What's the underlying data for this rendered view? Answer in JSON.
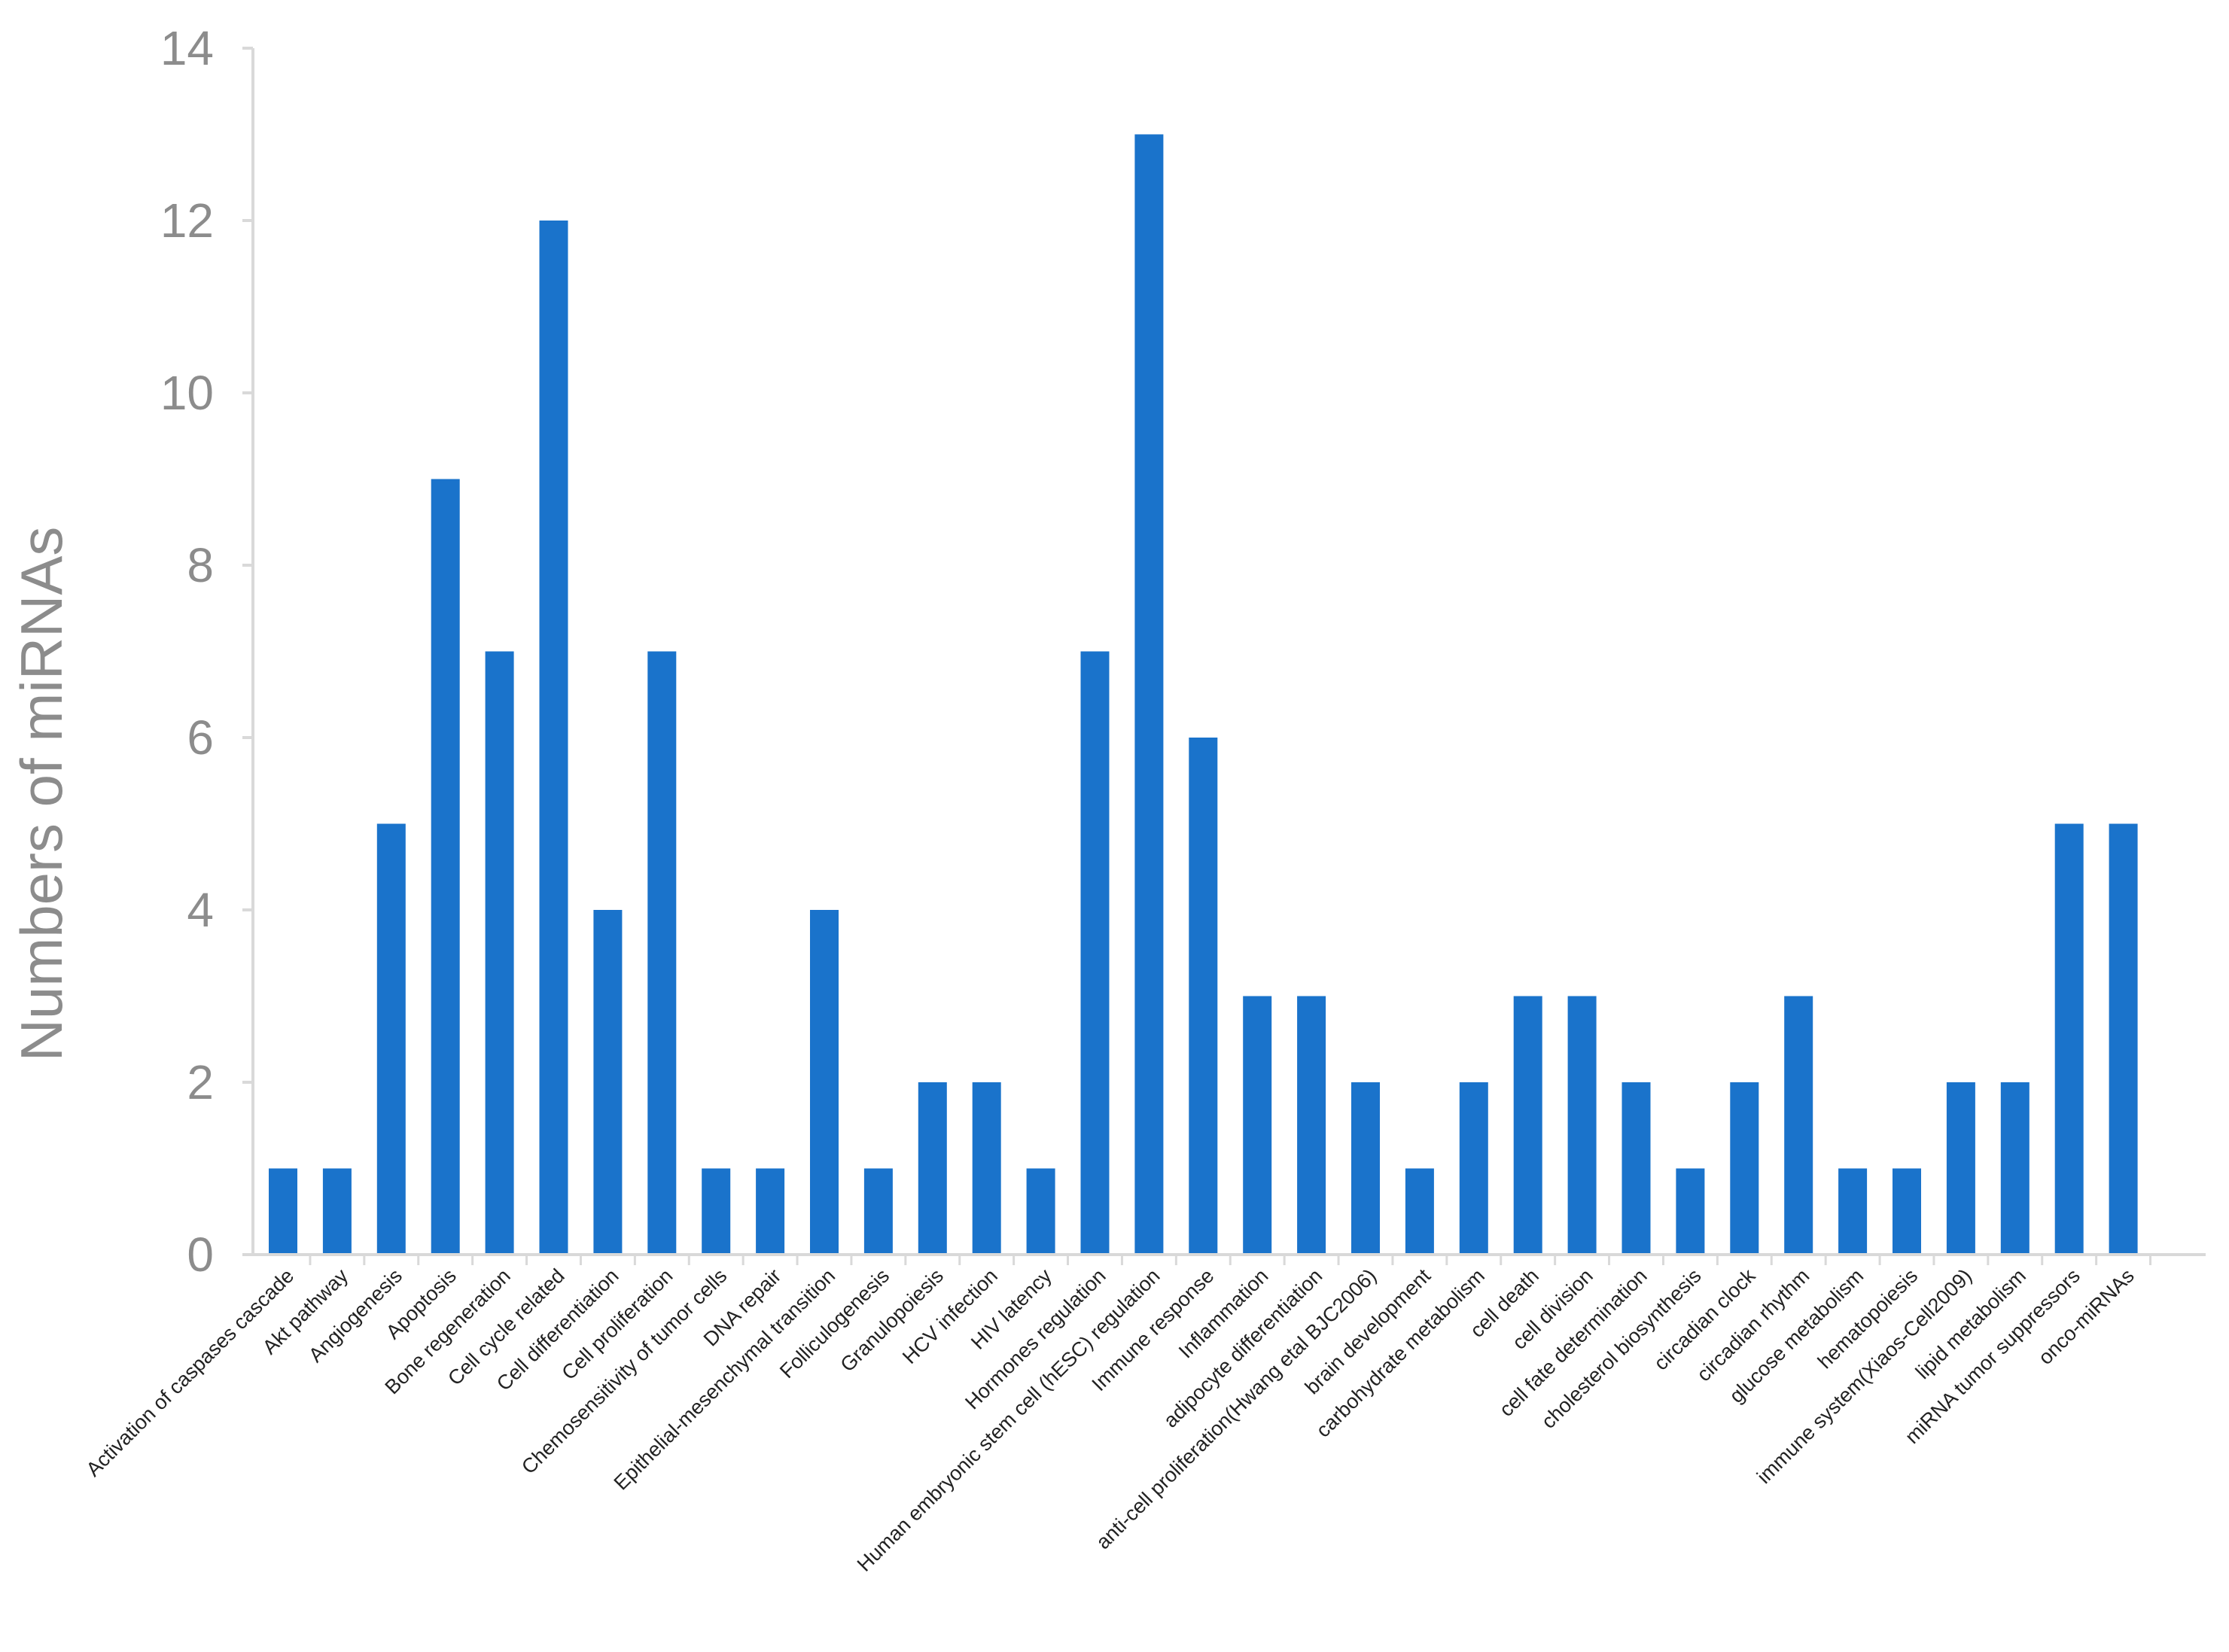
{
  "chart_data": {
    "type": "bar",
    "ylabel": "Numbers of miRNAs",
    "xlabel": "",
    "title": "",
    "ylim": [
      0,
      14
    ],
    "yticks": [
      0,
      2,
      4,
      6,
      8,
      10,
      12,
      14
    ],
    "grid": false,
    "legend": "none",
    "bar_color": "#1a73cb",
    "axis_color": "#d9d9d9",
    "tick_label_color": "#8c8c8c",
    "categories": [
      "Activation of caspases cascade",
      "Akt pathway",
      "Angiogenesis",
      "Apoptosis",
      "Bone regeneration",
      "Cell cycle related",
      "Cell differentiation",
      "Cell proliferation",
      "Chemosensitivity of tumor cells",
      "DNA repair",
      "Epithelial-mesenchymal transition",
      "Folliculogenesis",
      "Granulopoiesis",
      "HCV infection",
      "HIV latency",
      "Hormones regulation",
      "Human embryonic stem cell (hESC) regulation",
      "Immune response",
      "Inflammation",
      "adipocyte differentiation",
      "anti-cell proliferation(Hwang etal BJC2006)",
      "brain development",
      "carbohydrate metabolism",
      "cell death",
      "cell division",
      "cell fate determination",
      "cholesterol biosynthesis",
      "circadian clock",
      "circadian rhythm",
      "glucose metabolism",
      "hematopoiesis",
      "immune system(Xiaos-Cell2009)",
      "lipid metabolism",
      "miRNA tumor suppressors",
      "onco-miRNAs"
    ],
    "values": [
      1,
      1,
      5,
      9,
      7,
      12,
      4,
      7,
      1,
      1,
      4,
      1,
      2,
      2,
      1,
      7,
      13,
      6,
      3,
      3,
      2,
      1,
      2,
      3,
      3,
      2,
      1,
      2,
      3,
      1,
      1,
      2,
      2,
      5,
      5
    ]
  }
}
